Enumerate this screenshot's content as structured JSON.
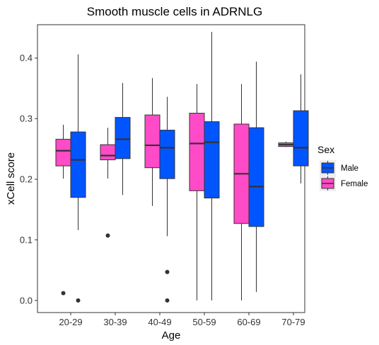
{
  "chart_data": {
    "type": "boxplot",
    "title": "Smooth muscle cells in ADRNLG",
    "xlabel": "Age",
    "ylabel": "xCell score",
    "ylim": [
      -0.02,
      0.455
    ],
    "yticks": [
      "0.0",
      "0.1",
      "0.2",
      "0.3",
      "0.4"
    ],
    "ytick_values": [
      0,
      0.1,
      0.2,
      0.3,
      0.4
    ],
    "grid": false,
    "legend": {
      "title": "Sex",
      "placement": "right",
      "entries": [
        "Male",
        "Female"
      ]
    },
    "categories": [
      "20-29",
      "30-39",
      "40-49",
      "50-59",
      "60-69",
      "70-79"
    ],
    "series": [
      {
        "name": "Female",
        "color": "#ff4bc7",
        "boxes": [
          {
            "whisker_low": 0.201,
            "q1": 0.222,
            "median": 0.247,
            "q3": 0.266,
            "whisker_high": 0.29,
            "outliers": [
              0.012
            ]
          },
          {
            "whisker_low": 0.201,
            "q1": 0.232,
            "median": 0.239,
            "q3": 0.257,
            "whisker_high": 0.285,
            "outliers": [
              0.107
            ]
          },
          {
            "whisker_low": 0.156,
            "q1": 0.219,
            "median": 0.256,
            "q3": 0.306,
            "whisker_high": 0.367,
            "outliers": []
          },
          {
            "whisker_low": 0.0,
            "q1": 0.181,
            "median": 0.259,
            "q3": 0.309,
            "whisker_high": 0.357,
            "outliers": []
          },
          {
            "whisker_low": 0.0,
            "q1": 0.127,
            "median": 0.209,
            "q3": 0.291,
            "whisker_high": 0.357,
            "outliers": []
          },
          {
            "whisker_low": 0.253,
            "q1": 0.254,
            "median": 0.257,
            "q3": 0.26,
            "whisker_high": 0.262,
            "outliers": []
          }
        ]
      },
      {
        "name": "Male",
        "color": "#0055ff",
        "boxes": [
          {
            "whisker_low": 0.116,
            "q1": 0.17,
            "median": 0.232,
            "q3": 0.278,
            "whisker_high": 0.406,
            "outliers": [
              0.0
            ]
          },
          {
            "whisker_low": 0.174,
            "q1": 0.234,
            "median": 0.266,
            "q3": 0.302,
            "whisker_high": 0.359,
            "outliers": []
          },
          {
            "whisker_low": 0.106,
            "q1": 0.201,
            "median": 0.252,
            "q3": 0.281,
            "whisker_high": 0.336,
            "outliers": [
              0.047,
              0.0
            ]
          },
          {
            "whisker_low": 0.0,
            "q1": 0.169,
            "median": 0.261,
            "q3": 0.295,
            "whisker_high": 0.443,
            "outliers": []
          },
          {
            "whisker_low": 0.014,
            "q1": 0.122,
            "median": 0.188,
            "q3": 0.285,
            "whisker_high": 0.394,
            "outliers": []
          },
          {
            "whisker_low": 0.193,
            "q1": 0.222,
            "median": 0.252,
            "q3": 0.313,
            "whisker_high": 0.373,
            "outliers": []
          }
        ]
      }
    ]
  }
}
